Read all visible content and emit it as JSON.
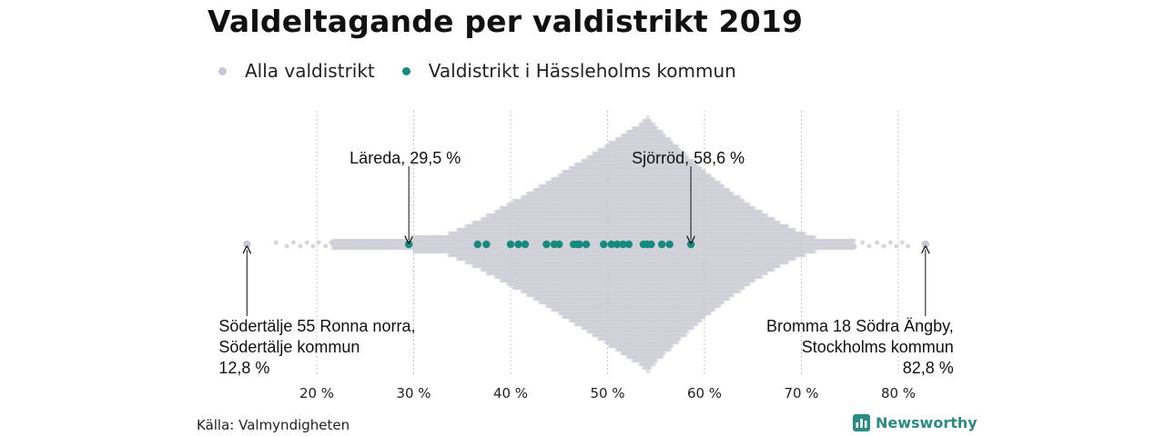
{
  "title": "Valdeltagande per valdistrikt 2019",
  "legend": [
    {
      "label": "Alla valdistrikt",
      "color": "#c9c8d2"
    },
    {
      "label": "Valdistrikt i Hässleholms kommun",
      "color": "#178a80"
    }
  ],
  "source": "Källa: Valmyndigheten",
  "brand": "Newsworthy",
  "chart_data": {
    "type": "scatter",
    "subtype": "beeswarm",
    "xlim": [
      12,
      86
    ],
    "xticks": [
      20,
      30,
      40,
      50,
      60,
      70,
      80
    ],
    "xtick_labels": [
      "20 %",
      "30 %",
      "40 %",
      "50 %",
      "60 %",
      "70 %",
      "80 %"
    ],
    "grid": "vertical dotted",
    "all_districts": {
      "name": "Alla valdistrikt",
      "color": "#c9c8d2",
      "min": 12.8,
      "max": 82.8,
      "peak": 54,
      "sparse_values": [
        15.8,
        16.9,
        17.6,
        18.3,
        19.0,
        19.6,
        20.2,
        20.9,
        21.5,
        75.5,
        76.3,
        77.0,
        77.8,
        78.5,
        79.2,
        79.8,
        80.4,
        81.0
      ]
    },
    "hassleholm": {
      "name": "Valdistrikt i Hässleholms kommun",
      "color": "#178a80",
      "values": [
        29.5,
        36.6,
        37.5,
        40.0,
        40.8,
        41.5,
        43.7,
        44.5,
        45.0,
        46.5,
        46.9,
        47.1,
        47.8,
        49.6,
        50.4,
        51.0,
        51.6,
        52.2,
        53.7,
        54.1,
        54.5,
        55.6,
        56.4,
        58.6
      ]
    },
    "annotations": [
      {
        "lines": [
          "Läreda, 29,5 %"
        ],
        "value": 29.5,
        "side": "above",
        "align": "start"
      },
      {
        "lines": [
          "Sjörröd, 58,6 %"
        ],
        "value": 58.6,
        "side": "above",
        "align": "start"
      },
      {
        "lines": [
          "Södertälje 55 Ronna norra,",
          "Södertälje kommun",
          "12,8 %"
        ],
        "value": 12.8,
        "side": "below",
        "align": "start"
      },
      {
        "lines": [
          "Bromma 18 Södra Ängby,",
          "Stockholms kommun",
          "82,8 %"
        ],
        "value": 82.8,
        "side": "below",
        "align": "end"
      }
    ]
  }
}
